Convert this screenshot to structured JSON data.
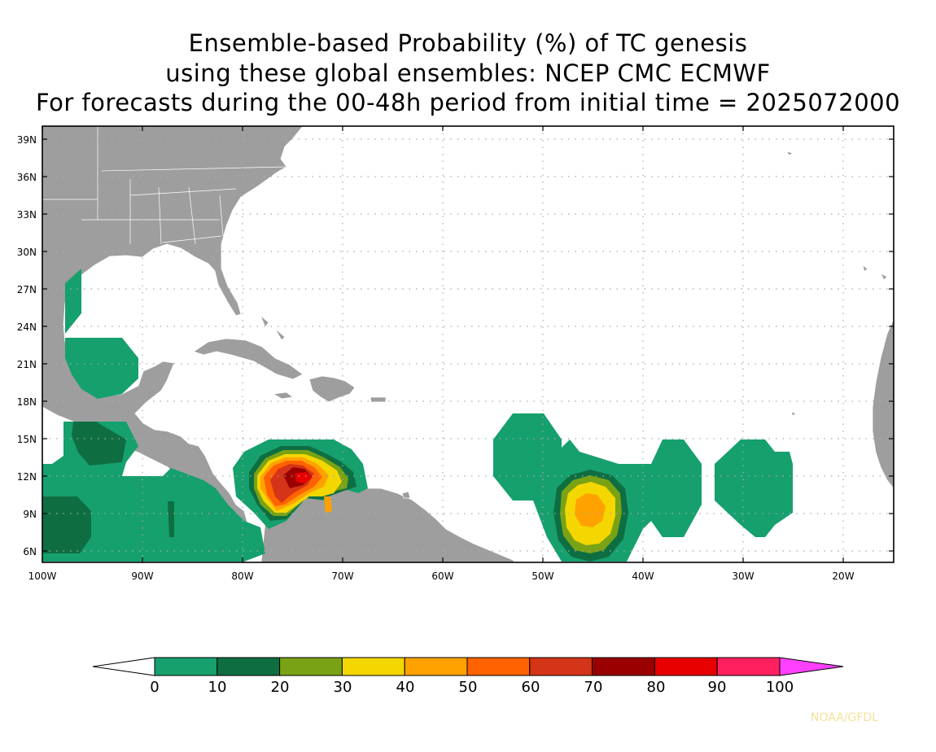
{
  "title": {
    "line1": "Ensemble-based Probability (%) of TC genesis",
    "line2": "using these global ensembles:   NCEP CMC ECMWF",
    "line3": "For forecasts during the 00-48h period from initial time = 2025072000"
  },
  "map": {
    "lon_range": [
      -100,
      -15
    ],
    "lat_range": [
      5,
      40
    ],
    "lat_ticks": [
      "39N",
      "36N",
      "33N",
      "30N",
      "27N",
      "24N",
      "21N",
      "18N",
      "15N",
      "12N",
      "9N",
      "6N"
    ],
    "lon_ticks": [
      "100W",
      "90W",
      "80W",
      "70W",
      "60W",
      "50W",
      "40W",
      "30W",
      "20W"
    ],
    "land_color": "#9e9e9e",
    "gridlines": "dotted"
  },
  "legend": {
    "labels": [
      "0",
      "10",
      "20",
      "30",
      "40",
      "50",
      "60",
      "70",
      "80",
      "90",
      "100"
    ],
    "colors": [
      "#16a06e",
      "#0e6e42",
      "#7aa215",
      "#f4d600",
      "#ffa200",
      "#ff6200",
      "#d43417",
      "#9a0000",
      "#e80000",
      "#ff2060"
    ],
    "under_color": "#ffffff",
    "over_color": "#ff40ff"
  },
  "credit": "NOAA/GFDL"
}
